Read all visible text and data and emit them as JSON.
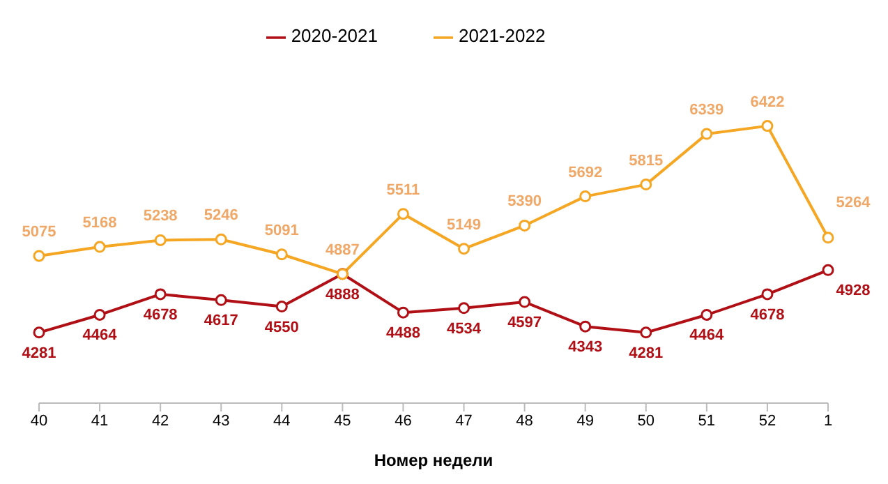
{
  "chart_data": {
    "type": "line",
    "xlabel": "Номер недели",
    "categories": [
      "40",
      "41",
      "42",
      "43",
      "44",
      "45",
      "46",
      "47",
      "48",
      "49",
      "50",
      "51",
      "52",
      "1"
    ],
    "series": [
      {
        "name": "2020-2021",
        "color": "#b01015",
        "values": [
          4281,
          4464,
          4678,
          4617,
          4550,
          4888,
          4488,
          4534,
          4597,
          4343,
          4281,
          4464,
          4678,
          4928
        ]
      },
      {
        "name": "2021-2022",
        "color": "#f5a623",
        "values": [
          5075,
          5168,
          5238,
          5246,
          5091,
          4887,
          5511,
          5149,
          5390,
          5692,
          5815,
          6339,
          6422,
          5264
        ]
      }
    ],
    "tick_labels": "x",
    "data_labels": true,
    "legend": "top",
    "marker": "circle",
    "line_style": "solid",
    "grid": false
  }
}
